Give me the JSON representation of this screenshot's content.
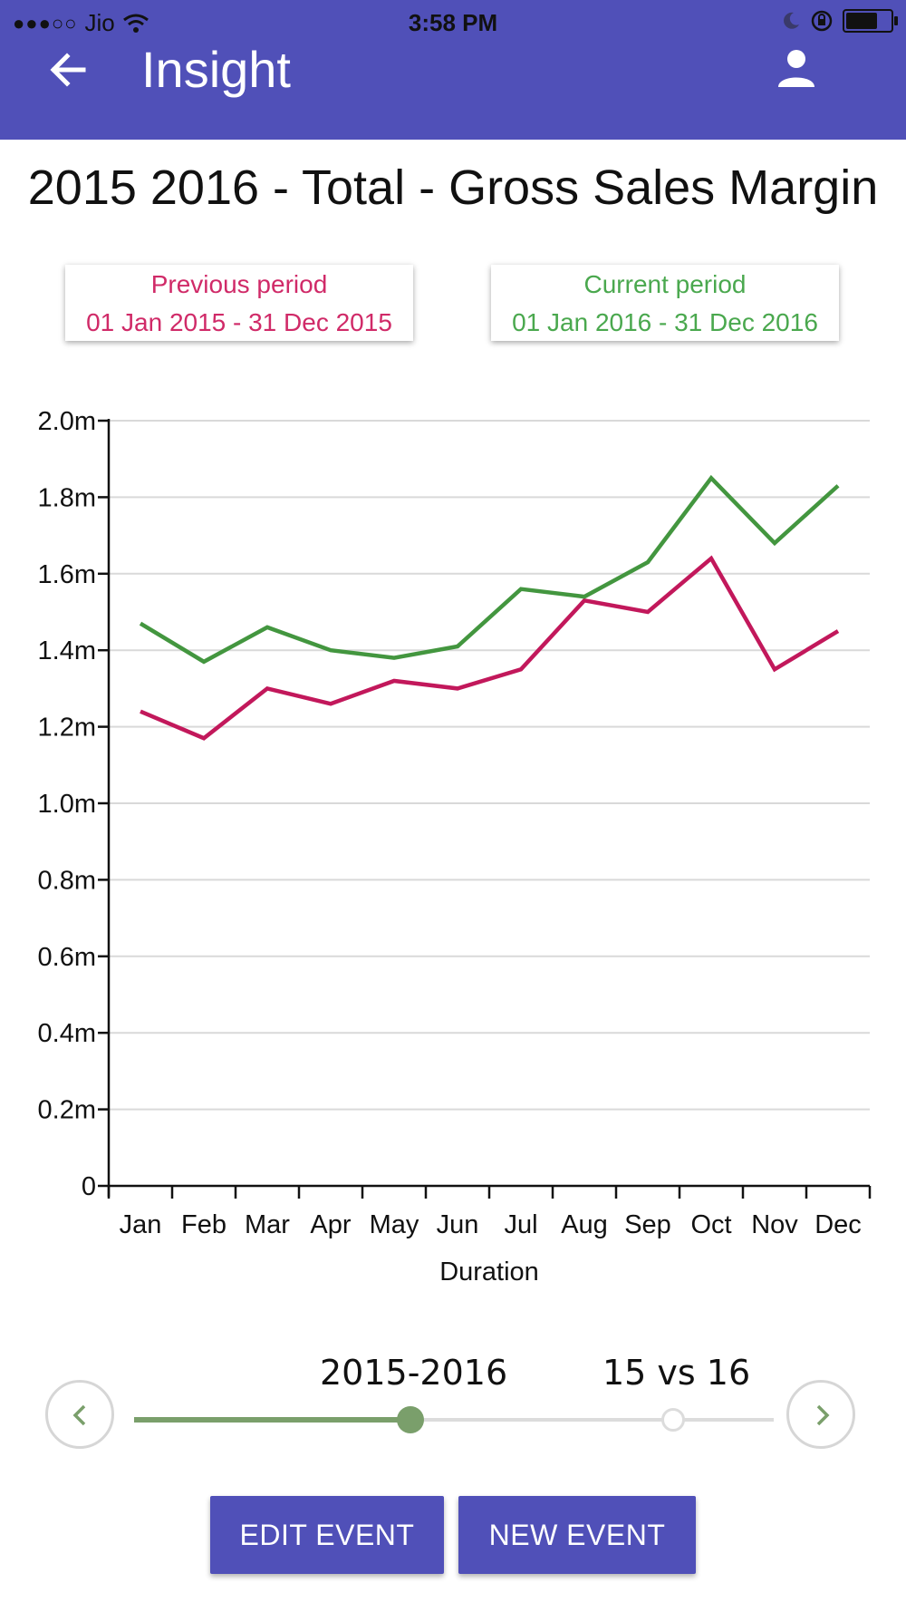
{
  "status_bar": {
    "carrier": "Jio",
    "time": "3:58 PM"
  },
  "app_bar": {
    "title": "Insight",
    "back_icon": "arrow-left-icon",
    "profile_icon": "person-icon"
  },
  "page": {
    "title": "2015 2016 - Total - Gross Sales Margin"
  },
  "periods": {
    "previous": {
      "label": "Previous period",
      "range": "01 Jan 2015 - 31 Dec 2015",
      "color": "#d02a68"
    },
    "current": {
      "label": "Current period",
      "range": "01 Jan 2016 - 31 Dec 2016",
      "color": "#4aa84e"
    }
  },
  "chart_data": {
    "type": "line",
    "title": "",
    "xlabel": "Duration",
    "ylabel": "",
    "categories": [
      "Jan",
      "Feb",
      "Mar",
      "Apr",
      "May",
      "Jun",
      "Jul",
      "Aug",
      "Sep",
      "Oct",
      "Nov",
      "Dec"
    ],
    "ylim": [
      0,
      2.0
    ],
    "yticks": [
      "0",
      "0.2m",
      "0.4m",
      "0.6m",
      "0.8m",
      "1.0m",
      "1.2m",
      "1.4m",
      "1.6m",
      "1.8m",
      "2.0m"
    ],
    "grid": true,
    "series": [
      {
        "key": "previous",
        "color": "#c2185b",
        "values": [
          1.24,
          1.17,
          1.3,
          1.26,
          1.32,
          1.3,
          1.35,
          1.53,
          1.5,
          1.64,
          1.35,
          1.45
        ]
      },
      {
        "key": "current",
        "color": "#43963f",
        "values": [
          1.47,
          1.37,
          1.46,
          1.4,
          1.38,
          1.41,
          1.56,
          1.54,
          1.63,
          1.85,
          1.68,
          1.83
        ]
      }
    ]
  },
  "slider": {
    "labels": [
      "2015-2016",
      "15 vs 16"
    ],
    "selected": "2015-2016",
    "prev_icon": "chevron-left-icon",
    "next_icon": "chevron-right-icon",
    "accent_color": "#7a9f6b"
  },
  "actions": {
    "edit_label": "EDIT EVENT",
    "new_label": "NEW EVENT"
  }
}
